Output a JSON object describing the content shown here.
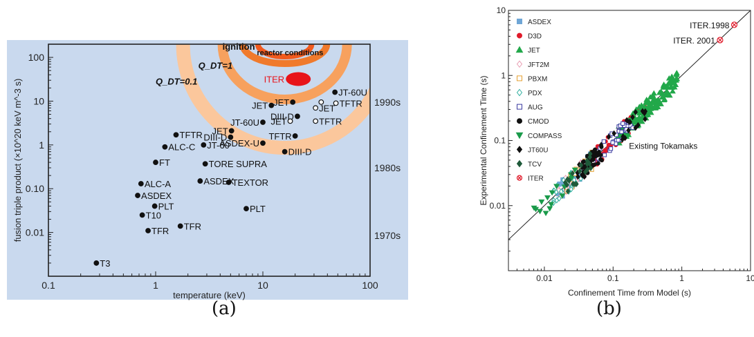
{
  "captions": {
    "a": "(a)",
    "b": "(b)"
  },
  "chart_data": [
    {
      "type": "scatter",
      "panel": "a",
      "xlabel": "temperature (keV)",
      "ylabel": "fusion triple product (×10^20 keV m^-3 s)",
      "xscale": "log",
      "yscale": "log",
      "xlim": [
        0.1,
        100
      ],
      "ylim": [
        0.001,
        200
      ],
      "x_ticks": [
        "0.1",
        "1",
        "10",
        "100"
      ],
      "y_ticks": [
        "0.01",
        "0.10",
        "1",
        "10",
        "100"
      ],
      "colors": {
        "background": "#c9d9ee",
        "ignition_band": "#f07a2c",
        "reactor_band": "#f15a1e",
        "qdt1_band": "#f7a15e",
        "qdt01_band": "#fbc79c",
        "iter": "#e8141a"
      },
      "points": [
        {
          "label": "T3",
          "x": 0.28,
          "y": 0.002,
          "filled": true
        },
        {
          "label": "TFR",
          "x": 0.85,
          "y": 0.011,
          "filled": true
        },
        {
          "label": "T10",
          "x": 0.75,
          "y": 0.025,
          "filled": true
        },
        {
          "label": "PLT",
          "x": 0.98,
          "y": 0.04,
          "filled": true
        },
        {
          "label": "ASDEX",
          "x": 0.68,
          "y": 0.07,
          "filled": true
        },
        {
          "label": "ALC-A",
          "x": 0.73,
          "y": 0.13,
          "filled": true
        },
        {
          "label": "FT",
          "x": 1.0,
          "y": 0.4,
          "filled": true
        },
        {
          "label": "ALC-C",
          "x": 1.22,
          "y": 0.9,
          "filled": true
        },
        {
          "label": "TFTR",
          "x": 1.55,
          "y": 1.7,
          "filled": true
        },
        {
          "label": "TFR",
          "x": 1.7,
          "y": 0.014,
          "filled": true
        },
        {
          "label": "ASDEX",
          "x": 2.6,
          "y": 0.15,
          "filled": true
        },
        {
          "label": "TORE SUPRA",
          "x": 2.9,
          "y": 0.37,
          "filled": true
        },
        {
          "label": "JT-60",
          "x": 2.8,
          "y": 1.0,
          "filled": true
        },
        {
          "label": "DIII-D",
          "x": 5.0,
          "y": 1.5,
          "filled": true
        },
        {
          "label": "JET",
          "x": 5.1,
          "y": 2.1,
          "filled": true
        },
        {
          "label": "TEXTOR",
          "x": 4.8,
          "y": 0.14,
          "filled": true
        },
        {
          "label": "PLT",
          "x": 7.0,
          "y": 0.035,
          "filled": true
        },
        {
          "label": "JT-60U",
          "x": 10.0,
          "y": 3.3,
          "filled": true
        },
        {
          "label": "ASDEX-U",
          "x": 10.0,
          "y": 1.1,
          "filled": true
        },
        {
          "label": "DIII-D",
          "x": 16.0,
          "y": 0.7,
          "filled": true
        },
        {
          "label": "TFTR",
          "x": 20.0,
          "y": 1.6,
          "filled": true
        },
        {
          "label": "JET",
          "x": 12.0,
          "y": 8.0,
          "filled": true
        },
        {
          "label": "JET",
          "x": 19.0,
          "y": 9.5,
          "filled": true
        },
        {
          "label": "DIII-D",
          "x": 21.0,
          "y": 4.5,
          "filled": true
        },
        {
          "label": "JET",
          "x": 18.0,
          "y": 3.5,
          "filled": false
        },
        {
          "label": "JET",
          "x": 31.0,
          "y": 7.0,
          "filled": false
        },
        {
          "label": "",
          "x": 35.0,
          "y": 9.5,
          "filled": false
        },
        {
          "label": "TFTR",
          "x": 31.0,
          "y": 3.5,
          "filled": false
        },
        {
          "label": "JT-60U",
          "x": 47.0,
          "y": 16.0,
          "filled": true
        },
        {
          "label": "TFTR",
          "x": 48.0,
          "y": 9.0,
          "filled": false
        }
      ],
      "iter": {
        "label": "ITER",
        "x": 19.0,
        "y": 32.0
      },
      "region_labels": [
        "ignition",
        "reactor conditions",
        "Q_DT=1",
        "Q_DT=0.1"
      ],
      "eras": [
        {
          "label": "1990s",
          "y": 9.5
        },
        {
          "label": "1980s",
          "y": 0.3
        },
        {
          "label": "1970s",
          "y": 0.0085
        }
      ]
    },
    {
      "type": "scatter",
      "panel": "b",
      "xlabel": "Confinement Time from Model (s)",
      "ylabel": "Experimental Confinement Time (s)",
      "xscale": "log",
      "yscale": "log",
      "xlim": [
        0.003,
        10
      ],
      "ylim": [
        0.001,
        10
      ],
      "x_ticks": [
        "0.01",
        "0.1",
        "1",
        "10"
      ],
      "y_ticks": [
        "0.01",
        "0.1",
        "1",
        "10"
      ],
      "legend_position": "top-left",
      "annotations": [
        "Existing Tokamaks",
        "ITER.1998",
        "ITER. 2001"
      ],
      "series": [
        {
          "name": "ASDEX",
          "marker": "square",
          "color": "#6fa6d6",
          "filled": true,
          "count": 40,
          "x_range": [
            0.015,
            0.05
          ]
        },
        {
          "name": "D3D",
          "marker": "circle",
          "color": "#e01a2a",
          "filled": true,
          "count": 50,
          "x_range": [
            0.05,
            0.35
          ]
        },
        {
          "name": "JET",
          "marker": "triangle-up",
          "color": "#22a84a",
          "filled": true,
          "count": 160,
          "x_range": [
            0.12,
            0.9
          ]
        },
        {
          "name": "JFT2M",
          "marker": "diamond",
          "color": "#e9a0b4",
          "filled": false,
          "count": 30,
          "x_range": [
            0.015,
            0.04
          ]
        },
        {
          "name": "PBXM",
          "marker": "square",
          "color": "#e6a030",
          "filled": false,
          "count": 15,
          "x_range": [
            0.02,
            0.05
          ]
        },
        {
          "name": "PDX",
          "marker": "diamond",
          "color": "#30b0a0",
          "filled": false,
          "count": 25,
          "x_range": [
            0.012,
            0.035
          ]
        },
        {
          "name": "AUG",
          "marker": "square",
          "color": "#3a3aa0",
          "filled": false,
          "count": 35,
          "x_range": [
            0.05,
            0.2
          ]
        },
        {
          "name": "CMOD",
          "marker": "circle",
          "color": "#111111",
          "filled": true,
          "count": 40,
          "x_range": [
            0.035,
            0.07
          ]
        },
        {
          "name": "COMPASS",
          "marker": "triangle-down",
          "color": "#1a9a4a",
          "filled": true,
          "count": 15,
          "x_range": [
            0.006,
            0.03
          ]
        },
        {
          "name": "JT60U",
          "marker": "diamond",
          "color": "#111111",
          "filled": true,
          "count": 30,
          "x_range": [
            0.03,
            0.3
          ]
        },
        {
          "name": "TCV",
          "marker": "diamond",
          "color": "#1f5a3a",
          "filled": true,
          "count": 20,
          "x_range": [
            0.02,
            0.05
          ]
        },
        {
          "name": "ITER",
          "marker": "circle-x",
          "color": "#e01a2a",
          "filled": false,
          "points": [
            {
              "label": "ITER.1998",
              "x": 5.8,
              "y": 6.0
            },
            {
              "label": "ITER. 2001",
              "x": 3.6,
              "y": 3.5
            }
          ]
        }
      ]
    }
  ]
}
